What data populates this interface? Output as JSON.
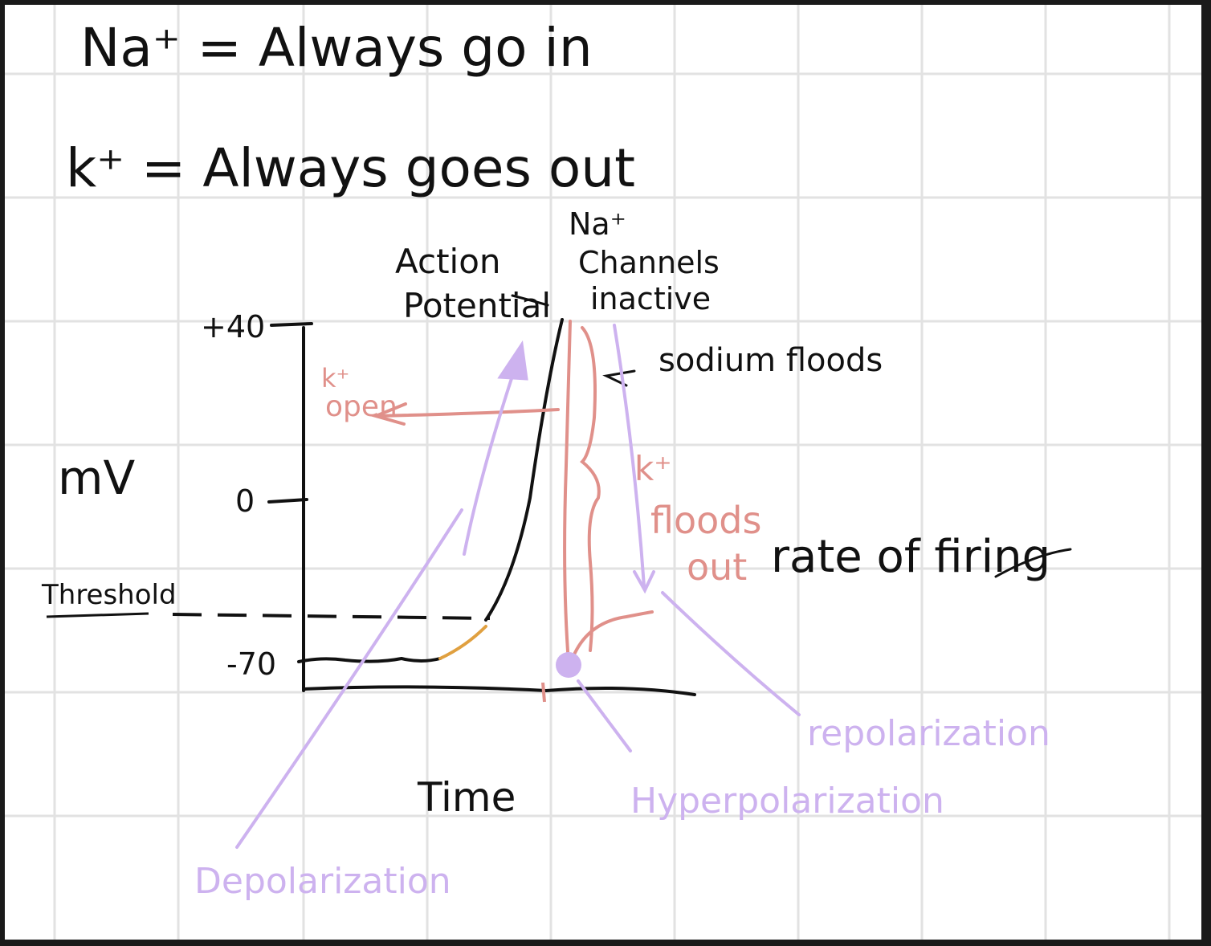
{
  "colors": {
    "paper": "#ffffff",
    "grid": "#e2e2e2",
    "ink": "#111111",
    "red": "#e0908a",
    "purple": "#cdb2ef",
    "orange": "#e0a040",
    "frame": "#1a1a1a"
  },
  "notes": {
    "na_rule": "Na⁺ = Always go in",
    "k_rule": "k⁺ = Always goes out"
  },
  "axes": {
    "y_label": "mV",
    "x_label": "Time",
    "tick_40": "+40",
    "tick_0": "0",
    "tick_threshold": "Threshold",
    "tick_minus70": "-70"
  },
  "labels": {
    "action_potential_line1": "Action",
    "action_potential_line2": "Potential",
    "na_inactive_line1": "Na⁺",
    "na_inactive_line2": "Channels",
    "na_inactive_line3": "inactive",
    "sodium_floods": "sodium floods",
    "k_open_line1": "k⁺",
    "k_open_line2": "open",
    "k_floods_line1": "k⁺",
    "k_floods_line2": "floods",
    "k_floods_line3": "out",
    "rate_of_firing": "rate of firing",
    "depolarization": "Depolarization",
    "hyperpolarization": "Hyperpolarization",
    "repolarization": "repolarization"
  }
}
